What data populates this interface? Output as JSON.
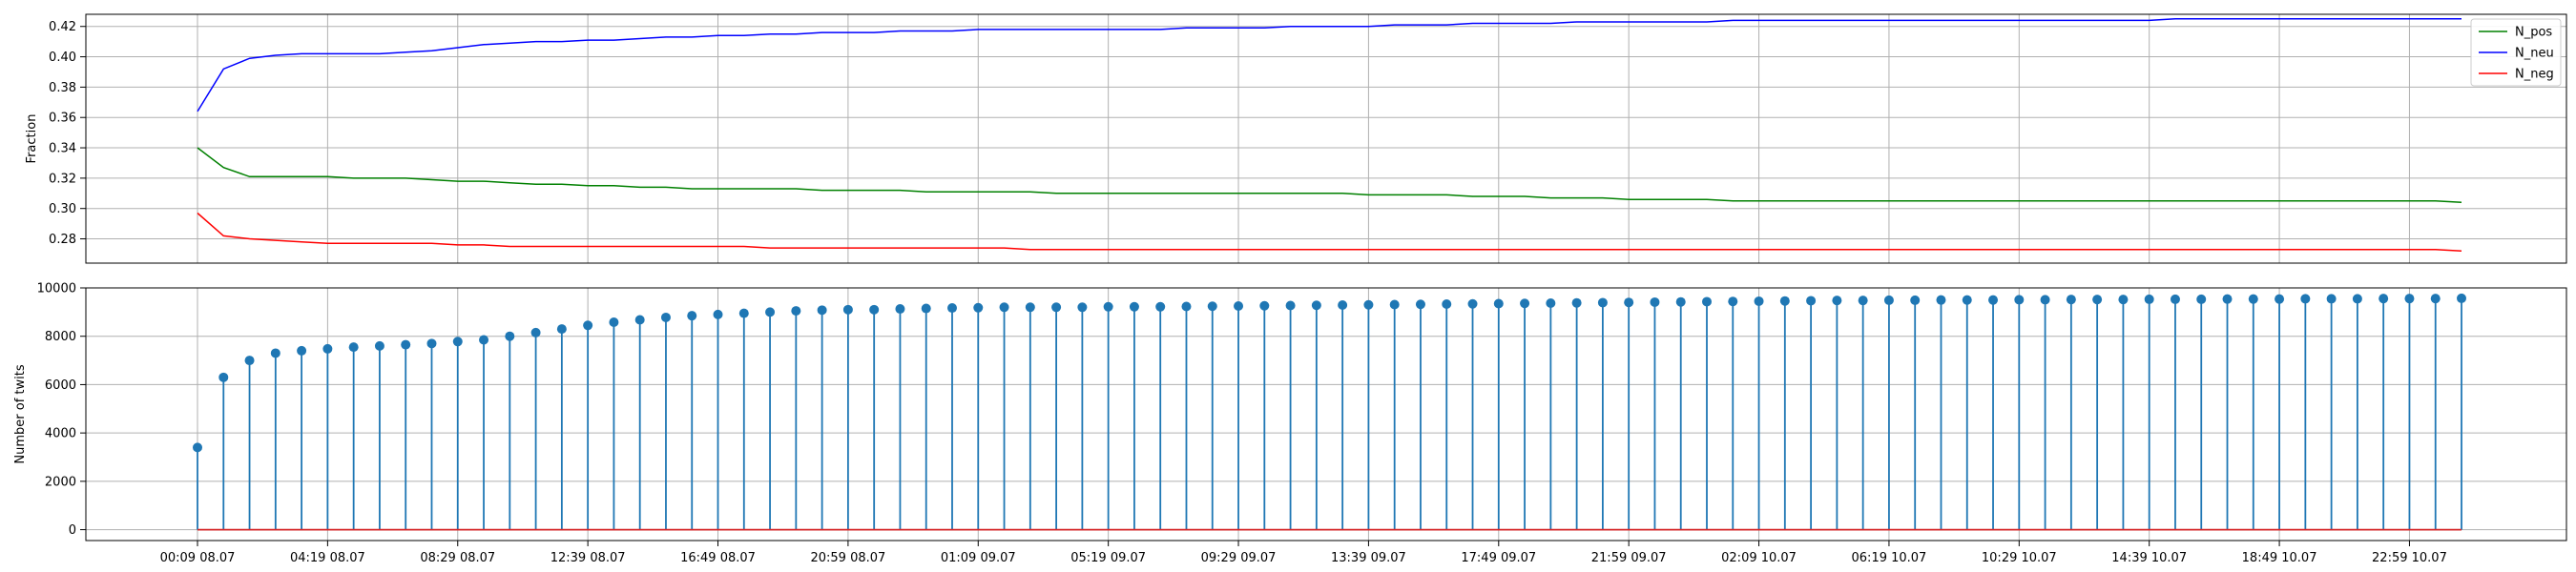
{
  "chart_data": [
    {
      "type": "line",
      "ylabel": "Fraction",
      "ylim": [
        0.264,
        0.428
      ],
      "yticks": [
        "0.28",
        "0.30",
        "0.32",
        "0.34",
        "0.36",
        "0.38",
        "0.40",
        "0.42"
      ],
      "grid": true,
      "legend_position": "top-right",
      "x_count": 88,
      "series": [
        {
          "name": "N_pos",
          "color": "#008000",
          "values": [
            0.34,
            0.327,
            0.321,
            0.321,
            0.321,
            0.321,
            0.32,
            0.32,
            0.32,
            0.319,
            0.318,
            0.318,
            0.317,
            0.316,
            0.316,
            0.315,
            0.315,
            0.314,
            0.314,
            0.313,
            0.313,
            0.313,
            0.313,
            0.313,
            0.312,
            0.312,
            0.312,
            0.312,
            0.311,
            0.311,
            0.311,
            0.311,
            0.311,
            0.31,
            0.31,
            0.31,
            0.31,
            0.31,
            0.31,
            0.31,
            0.31,
            0.31,
            0.31,
            0.31,
            0.31,
            0.309,
            0.309,
            0.309,
            0.309,
            0.308,
            0.308,
            0.308,
            0.307,
            0.307,
            0.307,
            0.306,
            0.306,
            0.306,
            0.306,
            0.305,
            0.305,
            0.305,
            0.305,
            0.305,
            0.305,
            0.305,
            0.305,
            0.305,
            0.305,
            0.305,
            0.305,
            0.305,
            0.305,
            0.305,
            0.305,
            0.305,
            0.305,
            0.305,
            0.305,
            0.305,
            0.305,
            0.305,
            0.305,
            0.305,
            0.305,
            0.305,
            0.305,
            0.304
          ]
        },
        {
          "name": "N_neu",
          "color": "#0000ff",
          "values": [
            0.364,
            0.392,
            0.399,
            0.401,
            0.402,
            0.402,
            0.402,
            0.402,
            0.403,
            0.404,
            0.406,
            0.408,
            0.409,
            0.41,
            0.41,
            0.411,
            0.411,
            0.412,
            0.413,
            0.413,
            0.414,
            0.414,
            0.415,
            0.415,
            0.416,
            0.416,
            0.416,
            0.417,
            0.417,
            0.417,
            0.418,
            0.418,
            0.418,
            0.418,
            0.418,
            0.418,
            0.418,
            0.418,
            0.419,
            0.419,
            0.419,
            0.419,
            0.42,
            0.42,
            0.42,
            0.42,
            0.421,
            0.421,
            0.421,
            0.422,
            0.422,
            0.422,
            0.422,
            0.423,
            0.423,
            0.423,
            0.423,
            0.423,
            0.423,
            0.424,
            0.424,
            0.424,
            0.424,
            0.424,
            0.424,
            0.424,
            0.424,
            0.424,
            0.424,
            0.424,
            0.424,
            0.424,
            0.424,
            0.424,
            0.424,
            0.424,
            0.425,
            0.425,
            0.425,
            0.425,
            0.425,
            0.425,
            0.425,
            0.425,
            0.425,
            0.425,
            0.425,
            0.425
          ]
        },
        {
          "name": "N_neg",
          "color": "#ff0000",
          "values": [
            0.297,
            0.282,
            0.28,
            0.279,
            0.278,
            0.277,
            0.277,
            0.277,
            0.277,
            0.277,
            0.276,
            0.276,
            0.275,
            0.275,
            0.275,
            0.275,
            0.275,
            0.275,
            0.275,
            0.275,
            0.275,
            0.275,
            0.274,
            0.274,
            0.274,
            0.274,
            0.274,
            0.274,
            0.274,
            0.274,
            0.274,
            0.274,
            0.273,
            0.273,
            0.273,
            0.273,
            0.273,
            0.273,
            0.273,
            0.273,
            0.273,
            0.273,
            0.273,
            0.273,
            0.273,
            0.273,
            0.273,
            0.273,
            0.273,
            0.273,
            0.273,
            0.273,
            0.273,
            0.273,
            0.273,
            0.273,
            0.273,
            0.273,
            0.273,
            0.273,
            0.273,
            0.273,
            0.273,
            0.273,
            0.273,
            0.273,
            0.273,
            0.273,
            0.273,
            0.273,
            0.273,
            0.273,
            0.273,
            0.273,
            0.273,
            0.273,
            0.273,
            0.273,
            0.273,
            0.273,
            0.273,
            0.273,
            0.273,
            0.273,
            0.273,
            0.273,
            0.273,
            0.272
          ]
        }
      ]
    },
    {
      "type": "stem",
      "ylabel": "Number of twits",
      "ylim": [
        -450,
        10000
      ],
      "yticks": [
        "0",
        "2000",
        "4000",
        "6000",
        "8000",
        "10000"
      ],
      "grid": true,
      "color": "#1f77b4",
      "baseline_color": "#d62728",
      "x_count": 88,
      "xtick_every": 5,
      "xtick_labels": [
        "00:09 08.07",
        "04:19 08.07",
        "08:29 08.07",
        "12:39 08.07",
        "16:49 08.07",
        "20:59 08.07",
        "01:09 09.07",
        "05:19 09.07",
        "09:29 09.07",
        "13:39 09.07",
        "17:49 09.07",
        "21:59 09.07",
        "02:09 10.07",
        "06:19 10.07",
        "10:29 10.07",
        "14:39 10.07",
        "18:49 10.07",
        "22:59 10.07"
      ],
      "values": [
        3400,
        6300,
        7000,
        7300,
        7400,
        7480,
        7550,
        7600,
        7650,
        7700,
        7780,
        7850,
        8000,
        8150,
        8300,
        8450,
        8580,
        8680,
        8780,
        8850,
        8900,
        8950,
        9000,
        9050,
        9080,
        9100,
        9100,
        9130,
        9150,
        9170,
        9180,
        9200,
        9200,
        9200,
        9200,
        9220,
        9220,
        9220,
        9230,
        9240,
        9250,
        9260,
        9270,
        9280,
        9290,
        9300,
        9310,
        9320,
        9330,
        9340,
        9350,
        9360,
        9370,
        9380,
        9390,
        9400,
        9410,
        9420,
        9430,
        9440,
        9450,
        9460,
        9470,
        9480,
        9480,
        9490,
        9490,
        9500,
        9500,
        9500,
        9510,
        9510,
        9520,
        9520,
        9520,
        9530,
        9530,
        9530,
        9540,
        9540,
        9540,
        9550,
        9550,
        9550,
        9560,
        9560,
        9560,
        9570
      ]
    }
  ]
}
